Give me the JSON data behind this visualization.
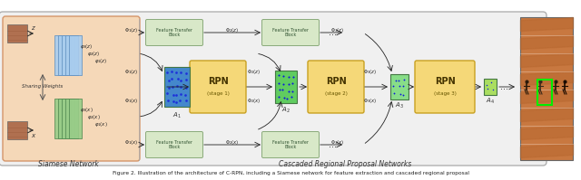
{
  "caption": "Figure 2. Illustration of the architecture of C-RPN, including a Siamese network for feature extraction and cascaded regional proposal",
  "siamese_label": "Siamese Network",
  "cascade_label": "Cascaded Regional Proposal Networks",
  "outer_bg": "#f0f0f0",
  "outer_edge": "#b0b0b0",
  "siamese_bg": "#f5d8b8",
  "siamese_edge": "#d4956a",
  "ftb_bg": "#d8e8c8",
  "ftb_edge": "#8aaa7a",
  "rpn_bg": "#f5d878",
  "rpn_edge": "#c8a020",
  "anchor1_bg": "#4488cc",
  "anchor1_dot": "#0000aa",
  "anchor2_bg": "#60cc60",
  "anchor2_dot": "#0000cc",
  "anchor3_bg": "#88dd88",
  "anchor3_dot": "#0000cc",
  "anchor4_bg": "#aade60",
  "anchor4_dot": "#0000cc",
  "layer_blue": "#a8ccee",
  "layer_blue_edge": "#6090c0",
  "layer_green": "#98cc88",
  "layer_green_edge": "#508850",
  "track_img_bg": "#c87840",
  "green_box": "#00ee00",
  "arrow_color": "#222222",
  "text_color": "#222222"
}
